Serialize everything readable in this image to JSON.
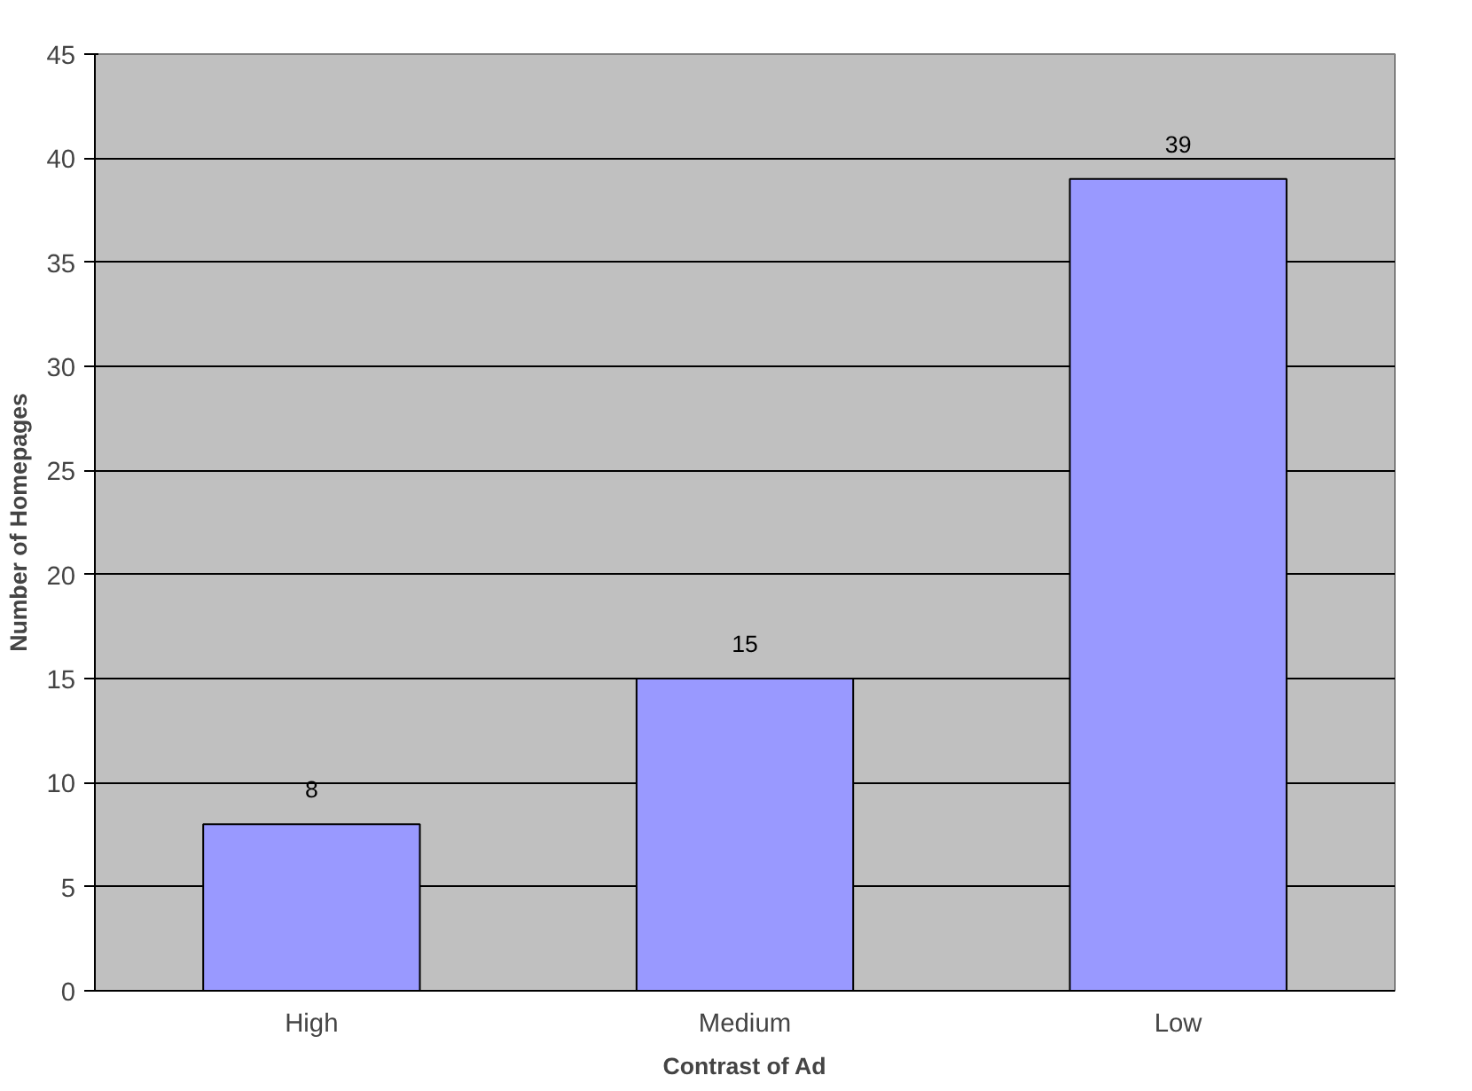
{
  "chart_data": {
    "type": "bar",
    "xlabel": "Contrast of Ad",
    "ylabel": "Number of Homepages",
    "categories": [
      "High",
      "Medium",
      "Low"
    ],
    "values": [
      8,
      15,
      39
    ],
    "color": "#9999ff",
    "ylim": [
      0,
      45
    ],
    "yticks": [
      0,
      5,
      10,
      15,
      20,
      25,
      30,
      35,
      40,
      45
    ],
    "grid": "y",
    "data_labels": true
  }
}
